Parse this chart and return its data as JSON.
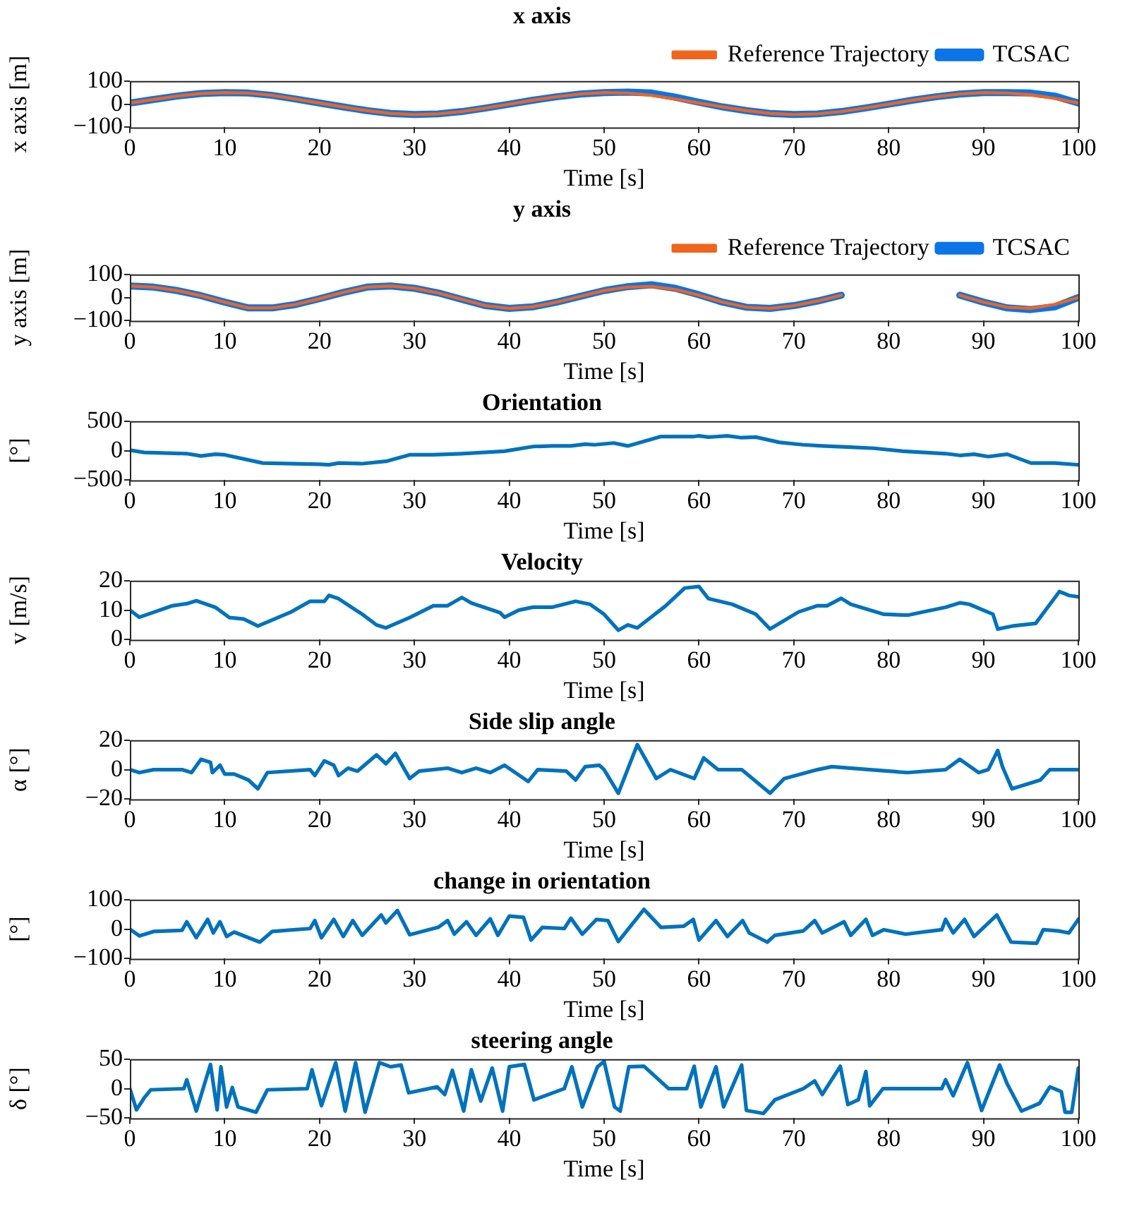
{
  "chart_data": [
    {
      "type": "line",
      "title": "x axis",
      "xlabel": "Time [s]",
      "ylabel": "x axis [m]",
      "legend": "top right",
      "xlim": [
        0,
        100
      ],
      "xticks": [
        0,
        10,
        20,
        30,
        40,
        50,
        60,
        70,
        80,
        90,
        100
      ],
      "ylim": [
        -100,
        100
      ],
      "yticks": [
        -100,
        0,
        100
      ],
      "x": [
        0,
        2.5,
        5,
        7.5,
        10,
        12.5,
        15,
        17.5,
        20,
        22.5,
        25,
        27.5,
        30,
        32.5,
        35,
        37.5,
        40,
        42.5,
        45,
        47.5,
        50,
        52.5,
        55,
        57.5,
        60,
        62.5,
        65,
        67.5,
        70,
        72.5,
        75,
        77.5,
        80,
        82.5,
        85,
        87.5,
        90,
        92.5,
        95,
        97.5,
        100
      ],
      "series": [
        {
          "name": "TCSAC",
          "color": "#0b74e6",
          "values": [
            5,
            20,
            35,
            46,
            50,
            48,
            38,
            22,
            5,
            -12,
            -28,
            -40,
            -45,
            -42,
            -32,
            -17,
            0,
            17,
            32,
            44,
            50,
            52,
            48,
            30,
            8,
            -12,
            -28,
            -40,
            -45,
            -42,
            -32,
            -17,
            0,
            17,
            32,
            44,
            50,
            50,
            48,
            35,
            5
          ]
        },
        {
          "name": "Reference Trajectory",
          "color": "#f0641e",
          "values": [
            5,
            20,
            35,
            46,
            50,
            48,
            38,
            22,
            5,
            -12,
            -28,
            -40,
            -45,
            -42,
            -32,
            -17,
            0,
            17,
            32,
            44,
            50,
            48,
            38,
            22,
            5,
            -12,
            -28,
            -40,
            -45,
            -42,
            -32,
            -17,
            0,
            17,
            32,
            44,
            50,
            48,
            40,
            25,
            5
          ]
        }
      ]
    },
    {
      "type": "line",
      "title": "y axis",
      "xlabel": "Time [s]",
      "ylabel": "y axis [m]",
      "legend": "top right",
      "xlim": [
        0,
        100
      ],
      "xticks": [
        0,
        10,
        20,
        30,
        40,
        50,
        60,
        70,
        80,
        90,
        100
      ],
      "ylim": [
        -100,
        100
      ],
      "yticks": [
        -100,
        0,
        100
      ],
      "x": [
        0,
        2.5,
        5,
        7.5,
        10,
        12.5,
        15,
        17.5,
        20,
        22.5,
        25,
        27.5,
        30,
        32.5,
        35,
        37.5,
        40,
        42.5,
        45,
        47.5,
        50,
        52.5,
        55,
        57.5,
        60,
        62.5,
        65,
        67.5,
        70,
        72.5,
        75,
        77.5,
        80,
        82.5,
        85,
        87.5,
        90,
        92.5,
        95,
        97.5,
        100
      ],
      "series": [
        {
          "name": "TCSAC",
          "color": "#0b74e6",
          "values": [
            50,
            45,
            30,
            8,
            -20,
            -45,
            -45,
            -30,
            -5,
            22,
            45,
            50,
            40,
            20,
            -8,
            -35,
            -47,
            -40,
            -20,
            5,
            30,
            47,
            55,
            40,
            12,
            -20,
            -42,
            -47,
            -35,
            -15,
            10,
            null,
            null,
            null,
            null,
            10,
            -20,
            -45,
            -52,
            -40,
            0
          ]
        },
        {
          "name": "Reference Trajectory",
          "color": "#f0641e",
          "values": [
            50,
            45,
            30,
            8,
            -20,
            -45,
            -45,
            -30,
            -5,
            22,
            45,
            50,
            40,
            20,
            -8,
            -35,
            -47,
            -40,
            -20,
            5,
            30,
            45,
            48,
            35,
            10,
            -20,
            -42,
            -47,
            -35,
            -15,
            10,
            null,
            null,
            null,
            null,
            10,
            -20,
            -42,
            -47,
            -30,
            0
          ]
        }
      ]
    },
    {
      "type": "line",
      "title": "Orientation",
      "xlabel": "Time [s]",
      "ylabel": "[°]",
      "xlim": [
        0,
        100
      ],
      "xticks": [
        0,
        10,
        20,
        30,
        40,
        50,
        60,
        70,
        80,
        90,
        100
      ],
      "ylim": [
        -500,
        500
      ],
      "yticks": [
        -500,
        0,
        500
      ],
      "series": [
        {
          "color": "#0072bd",
          "x": [
            0,
            1.5,
            6,
            7.5,
            9,
            10,
            14,
            20,
            21,
            22,
            24.5,
            27,
            29.5,
            32,
            35,
            39.5,
            42.5,
            44.5,
            46.5,
            48,
            49,
            51,
            52.5,
            56,
            59.5,
            60,
            61,
            63,
            64.5,
            66,
            68.5,
            71,
            73,
            76,
            78.5,
            81.5,
            86,
            87.5,
            89,
            90.5,
            92.5,
            95,
            97.5,
            100
          ],
          "values": [
            10,
            -30,
            -50,
            -90,
            -60,
            -70,
            -210,
            -230,
            -240,
            -210,
            -220,
            -180,
            -70,
            -70,
            -50,
            -10,
            70,
            80,
            80,
            110,
            100,
            130,
            80,
            240,
            240,
            250,
            230,
            250,
            220,
            230,
            140,
            100,
            80,
            60,
            40,
            -10,
            -50,
            -80,
            -60,
            -100,
            -60,
            -210,
            -210,
            -240
          ]
        }
      ]
    },
    {
      "type": "line",
      "title": "Velocity",
      "xlabel": "Time [s]",
      "ylabel": "v [m/s]",
      "xlim": [
        0,
        100
      ],
      "xticks": [
        0,
        10,
        20,
        30,
        40,
        50,
        60,
        70,
        80,
        90,
        100
      ],
      "ylim": [
        0,
        20
      ],
      "yticks": [
        0,
        10,
        20
      ],
      "series": [
        {
          "color": "#0072bd",
          "x": [
            0,
            1,
            4.5,
            6,
            7,
            9,
            10.5,
            12,
            13.5,
            17,
            19,
            20.5,
            21,
            22,
            24.5,
            26,
            27,
            29.5,
            32,
            33.5,
            35,
            36,
            39,
            39.5,
            41,
            42.5,
            44.5,
            47,
            48.5,
            50,
            51.5,
            52.5,
            53.5,
            56.5,
            58.5,
            60,
            61,
            63.5,
            66,
            67.5,
            70.5,
            72.5,
            73.5,
            75,
            76,
            79.5,
            82,
            86,
            87.5,
            88.5,
            91,
            91.5,
            93,
            95.5,
            98,
            99,
            100
          ],
          "values": [
            10,
            7.6,
            11.5,
            12.2,
            13.2,
            11,
            7.5,
            7,
            4.6,
            9.4,
            13,
            13,
            15,
            13.9,
            8.6,
            5,
            4,
            7.5,
            11.5,
            11.5,
            14.3,
            12.4,
            9.2,
            7.6,
            10,
            11,
            11,
            13,
            12,
            8.6,
            3.2,
            5,
            4,
            11.5,
            17.5,
            18,
            13.9,
            12,
            8.6,
            3.6,
            9.4,
            11.5,
            11.5,
            14,
            12,
            8.6,
            8.3,
            11,
            12.5,
            12,
            8.6,
            3.6,
            4.6,
            5.5,
            16.3,
            15,
            14.5
          ]
        }
      ]
    },
    {
      "type": "line",
      "title": "Side slip angle",
      "xlabel": "Time [s]",
      "ylabel": "α [°]",
      "xlim": [
        0,
        100
      ],
      "xticks": [
        0,
        10,
        20,
        30,
        40,
        50,
        60,
        70,
        80,
        90,
        100
      ],
      "ylim": [
        -20,
        20
      ],
      "yticks": [
        -20,
        0,
        20
      ],
      "series": [
        {
          "color": "#0072bd",
          "x": [
            0,
            1,
            2.5,
            5.5,
            6.5,
            7.5,
            8.5,
            8.7,
            9.5,
            10,
            11,
            12.5,
            13.5,
            14.5,
            19,
            19.5,
            20.5,
            21.5,
            22,
            23,
            24,
            26,
            27,
            28,
            29.5,
            30.5,
            33.5,
            35,
            36.5,
            38,
            39.5,
            42,
            43,
            46,
            47,
            48,
            49.5,
            50,
            51.5,
            53.5,
            55.5,
            57,
            59.5,
            60.5,
            62,
            64.5,
            67.5,
            69,
            72.5,
            74,
            78,
            82,
            86,
            87.5,
            89.5,
            90.5,
            91.5,
            92,
            93,
            96,
            97,
            100
          ],
          "values": [
            0,
            -2,
            0,
            0,
            -2,
            7,
            5,
            -2,
            3,
            -3,
            -3,
            -7,
            -13,
            -2,
            0,
            -4,
            6,
            3,
            -4,
            1,
            -1,
            10,
            4,
            11,
            -6,
            -1,
            1,
            -2,
            1,
            -2,
            3,
            -8,
            0,
            -1,
            -7,
            2,
            3,
            0,
            -16,
            17,
            -6,
            0,
            -6,
            8,
            0,
            0,
            -16,
            -6,
            0,
            2,
            0,
            -2,
            0,
            7,
            -2,
            0,
            13,
            2,
            -13,
            -7,
            0,
            0
          ]
        }
      ]
    },
    {
      "type": "line",
      "title": "change in orientation",
      "xlabel": "Time [s]",
      "ylabel": "[°]",
      "xlim": [
        0,
        100
      ],
      "xticks": [
        0,
        10,
        20,
        30,
        40,
        50,
        60,
        70,
        80,
        90,
        100
      ],
      "ylim": [
        -100,
        100
      ],
      "yticks": [
        -100,
        0,
        100
      ],
      "series": [
        {
          "color": "#0072bd",
          "x": [
            0,
            1,
            2.5,
            5.5,
            6,
            7,
            8.2,
            8.8,
            9.5,
            10.2,
            11,
            13.7,
            15,
            19,
            19.5,
            20.2,
            21.5,
            22.5,
            23.5,
            24.5,
            26.5,
            27,
            28.2,
            29.5,
            32.5,
            33.5,
            34.2,
            35.5,
            36.5,
            38,
            38.8,
            40,
            41.5,
            42.3,
            43.5,
            45.8,
            46.5,
            47.7,
            49.2,
            50.4,
            51.5,
            54.2,
            56,
            58.4,
            59.4,
            60,
            61.8,
            63,
            64.6,
            65.3,
            67.2,
            68,
            71,
            72.2,
            73,
            75.3,
            76,
            77.6,
            78.3,
            79.5,
            81.8,
            85.6,
            86,
            86.8,
            88,
            89,
            91.4,
            92.9,
            95.6,
            96.3,
            97.9,
            99,
            100
          ],
          "values": [
            0,
            -23,
            -8,
            -4,
            25,
            -29,
            33,
            -13,
            25,
            -25,
            -10,
            -44,
            -8,
            2,
            29,
            -29,
            33,
            -25,
            29,
            -21,
            48,
            21,
            63,
            -19,
            6,
            29,
            -17,
            25,
            -21,
            35,
            -21,
            44,
            40,
            -37,
            6,
            2,
            37,
            -17,
            33,
            29,
            -42,
            67,
            6,
            10,
            33,
            -37,
            29,
            -25,
            29,
            -13,
            -44,
            -21,
            -6,
            29,
            -13,
            25,
            -21,
            33,
            -21,
            -2,
            -17,
            -2,
            33,
            -13,
            33,
            -25,
            48,
            -44,
            -48,
            -2,
            -6,
            -13,
            33
          ]
        }
      ]
    },
    {
      "type": "line",
      "title": "steering angle",
      "xlabel": "Time [s]",
      "ylabel": "δ [°]",
      "xlim": [
        0,
        100
      ],
      "xticks": [
        0,
        10,
        20,
        30,
        40,
        50,
        60,
        70,
        80,
        90,
        100
      ],
      "ylim": [
        -50,
        50
      ],
      "yticks": [
        -50,
        0,
        50
      ],
      "series": [
        {
          "color": "#0072bd",
          "x": [
            0,
            0.7,
            1.5,
            2.2,
            5.7,
            6,
            7,
            8.5,
            9.2,
            9.6,
            10.2,
            10.8,
            11.4,
            13.3,
            14.5,
            18.7,
            19.2,
            20.2,
            21.7,
            22.7,
            23.8,
            24.8,
            26.3,
            27.5,
            28.6,
            29.4,
            32.4,
            33.2,
            34,
            35.2,
            36,
            37,
            38.2,
            39.3,
            40,
            41.6,
            42.6,
            45.8,
            46.6,
            47.7,
            49.3,
            50,
            51.1,
            51.7,
            52.6,
            54.2,
            56.8,
            58.7,
            59.5,
            60.2,
            61.8,
            62.6,
            64.5,
            65,
            66.8,
            68,
            71,
            72.2,
            73,
            74.9,
            75.7,
            76.8,
            77.6,
            78,
            79.4,
            85.6,
            86,
            86.8,
            88.3,
            89.8,
            91.7,
            92.5,
            94,
            95.9,
            97,
            98.2,
            98.6,
            99.3,
            100
          ],
          "values": [
            0,
            -36,
            -16,
            -2,
            0,
            15,
            -38,
            41,
            -36,
            37,
            -31,
            2,
            -31,
            -40,
            -2,
            0,
            32,
            -29,
            44,
            -38,
            44,
            -40,
            44,
            37,
            40,
            -7,
            3,
            -10,
            31,
            -38,
            32,
            -21,
            35,
            -38,
            37,
            41,
            -19,
            0,
            37,
            -31,
            37,
            46,
            -31,
            -38,
            37,
            38,
            0,
            0,
            38,
            -31,
            37,
            -31,
            40,
            -37,
            -42,
            -19,
            0,
            13,
            -10,
            38,
            -27,
            -19,
            29,
            -29,
            0,
            0,
            15,
            -12,
            44,
            -37,
            40,
            8,
            -38,
            -25,
            3,
            -5,
            -40,
            -40,
            35
          ]
        }
      ]
    }
  ]
}
